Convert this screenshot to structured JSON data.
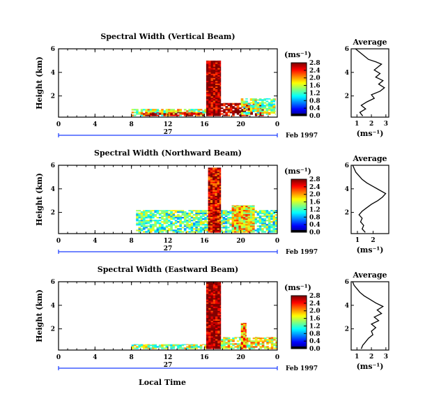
{
  "chart_data": [
    {
      "type": "heatmap",
      "title": "Spectral Width (Vertical Beam)",
      "ylabel": "Height (km)",
      "xlabel": "",
      "date_label": "27",
      "month_label": "Feb 1997",
      "x_ticks": [
        "0",
        "4",
        "8",
        "12",
        "16",
        "20",
        "0"
      ],
      "y_ticks": [
        "2",
        "4",
        "6"
      ],
      "xlim": [
        0,
        24
      ],
      "ylim": [
        0.2,
        6
      ],
      "colorbar": {
        "units": "(ms⁻¹)",
        "ticks": [
          "0.0",
          "0.4",
          "0.8",
          "1.2",
          "1.6",
          "2.0",
          "2.4",
          "2.8"
        ],
        "range": [
          0,
          2.8
        ]
      },
      "average": {
        "title": "Average",
        "xlabel": "(ms⁻¹)",
        "x_ticks": [
          "1",
          "2",
          "3"
        ],
        "xlim": [
          0.6,
          3.2
        ],
        "ylim": [
          0.2,
          6
        ],
        "y_ticks": [
          "2",
          "4",
          "6"
        ],
        "profile": [
          [
            1.4,
            0.3
          ],
          [
            1.2,
            0.6
          ],
          [
            1.6,
            0.9
          ],
          [
            1.3,
            1.2
          ],
          [
            1.7,
            1.5
          ],
          [
            2.2,
            1.8
          ],
          [
            2.0,
            2.1
          ],
          [
            2.6,
            2.4
          ],
          [
            2.9,
            2.7
          ],
          [
            2.5,
            3.0
          ],
          [
            2.8,
            3.3
          ],
          [
            2.3,
            3.6
          ],
          [
            2.6,
            3.9
          ],
          [
            2.2,
            4.2
          ],
          [
            2.5,
            4.5
          ],
          [
            2.7,
            4.7
          ],
          [
            2.3,
            4.9
          ],
          [
            1.8,
            5.1
          ],
          [
            1.5,
            5.4
          ],
          [
            1.2,
            5.7
          ],
          [
            0.9,
            6.0
          ]
        ]
      },
      "features": [
        {
          "t0": 8.0,
          "t1": 16.2,
          "h0": 0.3,
          "h1": 0.9,
          "v": 1.6
        },
        {
          "t0": 9.0,
          "t1": 16.0,
          "h0": 0.3,
          "h1": 0.6,
          "v": 2.6
        },
        {
          "t0": 16.2,
          "t1": 17.8,
          "h0": 0.3,
          "h1": 5.0,
          "v": 2.8
        },
        {
          "t0": 17.8,
          "t1": 22.5,
          "h0": 0.3,
          "h1": 1.4,
          "v": 2.7
        },
        {
          "t0": 20.0,
          "t1": 23.8,
          "h0": 0.4,
          "h1": 1.8,
          "v": 1.5
        }
      ]
    },
    {
      "type": "heatmap",
      "title": "Spectral Width (Northward Beam)",
      "ylabel": "Height (km)",
      "xlabel": "",
      "date_label": "27",
      "month_label": "Feb 1997",
      "x_ticks": [
        "0",
        "4",
        "8",
        "12",
        "16",
        "20",
        "0"
      ],
      "y_ticks": [
        "2",
        "4",
        "6"
      ],
      "xlim": [
        0,
        24
      ],
      "ylim": [
        0.2,
        6
      ],
      "colorbar": {
        "units": "(ms⁻¹)",
        "ticks": [
          "0.0",
          "0.4",
          "0.8",
          "1.2",
          "1.6",
          "2.0",
          "2.4",
          "2.8"
        ],
        "range": [
          0,
          2.8
        ]
      },
      "average": {
        "title": "Average",
        "xlabel": "(ms⁻¹)",
        "x_ticks": [
          "1",
          "2"
        ],
        "xlim": [
          0.6,
          3.0
        ],
        "ylim": [
          0.2,
          6
        ],
        "y_ticks": [
          "2",
          "4",
          "6"
        ],
        "profile": [
          [
            1.5,
            0.3
          ],
          [
            1.3,
            0.6
          ],
          [
            1.4,
            0.9
          ],
          [
            1.2,
            1.2
          ],
          [
            1.3,
            1.5
          ],
          [
            1.1,
            1.8
          ],
          [
            1.3,
            2.1
          ],
          [
            1.6,
            2.4
          ],
          [
            1.9,
            2.7
          ],
          [
            2.3,
            3.0
          ],
          [
            2.6,
            3.3
          ],
          [
            2.8,
            3.6
          ],
          [
            2.4,
            3.9
          ],
          [
            2.0,
            4.2
          ],
          [
            1.6,
            4.5
          ],
          [
            1.3,
            4.8
          ],
          [
            1.1,
            5.1
          ],
          [
            0.9,
            5.4
          ],
          [
            0.8,
            5.7
          ],
          [
            0.7,
            6.0
          ]
        ]
      },
      "features": [
        {
          "t0": 8.5,
          "t1": 24.0,
          "h0": 0.3,
          "h1": 2.2,
          "v": 1.3
        },
        {
          "t0": 16.4,
          "t1": 17.8,
          "h0": 0.3,
          "h1": 5.8,
          "v": 2.6
        },
        {
          "t0": 19.0,
          "t1": 21.5,
          "h0": 0.3,
          "h1": 2.6,
          "v": 1.8
        }
      ]
    },
    {
      "type": "heatmap",
      "title": "Spectral Width (Eastward Beam)",
      "ylabel": "Height (km)",
      "xlabel": "Local Time",
      "date_label": "27",
      "month_label": "Feb 1997",
      "x_ticks": [
        "0",
        "4",
        "8",
        "12",
        "16",
        "20",
        "0"
      ],
      "y_ticks": [
        "2",
        "4",
        "6"
      ],
      "xlim": [
        0,
        24
      ],
      "ylim": [
        0.2,
        6
      ],
      "colorbar": {
        "units": "(ms⁻¹)",
        "ticks": [
          "0.0",
          "0.4",
          "0.8",
          "1.2",
          "1.6",
          "2.0",
          "2.4",
          "2.8"
        ],
        "range": [
          0,
          2.8
        ]
      },
      "average": {
        "title": "Average",
        "xlabel": "(ms⁻¹)",
        "x_ticks": [
          "1",
          "2",
          "3"
        ],
        "xlim": [
          0.6,
          3.2
        ],
        "ylim": [
          0.2,
          6
        ],
        "y_ticks": [
          "2",
          "4",
          "6"
        ],
        "profile": [
          [
            1.3,
            0.3
          ],
          [
            1.4,
            0.6
          ],
          [
            1.6,
            0.9
          ],
          [
            1.8,
            1.2
          ],
          [
            2.1,
            1.5
          ],
          [
            2.0,
            1.8
          ],
          [
            2.3,
            2.1
          ],
          [
            2.0,
            2.4
          ],
          [
            2.5,
            2.7
          ],
          [
            2.2,
            3.0
          ],
          [
            2.7,
            3.3
          ],
          [
            2.4,
            3.6
          ],
          [
            2.8,
            3.9
          ],
          [
            2.3,
            4.2
          ],
          [
            1.9,
            4.5
          ],
          [
            1.5,
            4.8
          ],
          [
            1.2,
            5.1
          ],
          [
            1.0,
            5.4
          ],
          [
            0.8,
            5.7
          ],
          [
            0.7,
            6.0
          ]
        ]
      },
      "features": [
        {
          "t0": 8.0,
          "t1": 16.2,
          "h0": 0.3,
          "h1": 0.7,
          "v": 1.5
        },
        {
          "t0": 16.2,
          "t1": 17.8,
          "h0": 0.3,
          "h1": 6.0,
          "v": 2.8
        },
        {
          "t0": 17.8,
          "t1": 24.0,
          "h0": 0.3,
          "h1": 1.3,
          "v": 1.7
        },
        {
          "t0": 20.0,
          "t1": 20.6,
          "h0": 0.3,
          "h1": 2.5,
          "v": 2.0
        }
      ]
    }
  ]
}
